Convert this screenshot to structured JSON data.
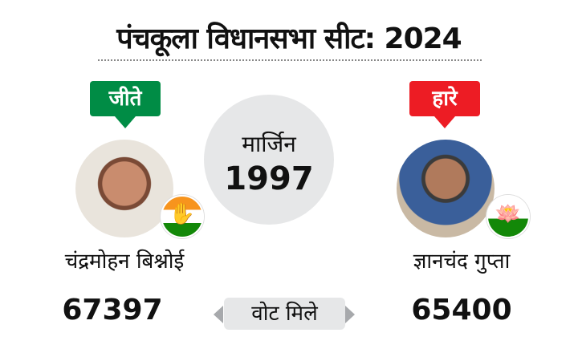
{
  "title": "पंचकूला विधानसभा सीट: 2024",
  "margin": {
    "label": "मार्जिन",
    "value": "1997"
  },
  "winner": {
    "status": "जीते",
    "name": "चंद्रमोहन बिश्नोई",
    "votes": "67397",
    "party_icon": "congress-hand-icon",
    "status_color": "#008c45"
  },
  "loser": {
    "status": "हारे",
    "name": "ज्ञानचंद गुप्ता",
    "votes": "65400",
    "party_icon": "bjp-lotus-icon",
    "status_color": "#ed1c24"
  },
  "votes_label": "वोट मिले"
}
